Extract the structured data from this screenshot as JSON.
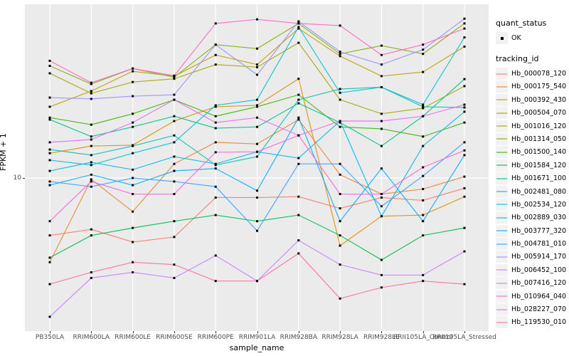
{
  "axes": {
    "x_title": "sample_name",
    "y_title": "FPKM + 1",
    "y_tick": "10"
  },
  "legend": {
    "quant_status_title": "quant_status",
    "quant_status_items": [
      {
        "label": "OK"
      }
    ],
    "tracking_id_title": "tracking_id"
  },
  "colors": {
    "panel_bg": "#EBEBEB",
    "grid": "#FFFFFF",
    "tick_label": "#4D4D4D",
    "point": "#000000",
    "legend_key_bg": "#F2F2F2"
  },
  "chart_data": {
    "type": "line",
    "title": "",
    "xlabel": "sample_name",
    "ylabel": "FPKM + 1",
    "y_scale": "log10",
    "y_tick_values": [
      10
    ],
    "ylim": [
      1.05,
      135
    ],
    "grid": "white major gridlines on gray panel",
    "legend_position": "right",
    "point_marker": "small black square (quant_status = OK)",
    "x_categories": [
      "PB350LA",
      "RRIM600LA",
      "RRIM600LE",
      "RRIM600SE",
      "RRIM600PE",
      "RRIM901LA",
      "RRIM928BA",
      "RRIM928LA",
      "RRIM928LE",
      "RRII105LA_Control",
      "RRII105LA_Stressed"
    ],
    "series": [
      {
        "name": "Hb_000078_120",
        "color": "#F8766D",
        "values": [
          4.3,
          4.7,
          3.9,
          4.2,
          7.5,
          7.5,
          7.6,
          6.4,
          7.5,
          7.2,
          8.6
        ]
      },
      {
        "name": "Hb_000175_540",
        "color": "#EA8331",
        "values": [
          2.9,
          9.8,
          6.1,
          12.3,
          16.9,
          16.5,
          23.6,
          10.5,
          7.9,
          8.5,
          10.2
        ]
      },
      {
        "name": "Hb_000392_430",
        "color": "#D89000",
        "values": [
          14.4,
          16.0,
          16.2,
          23.1,
          28.5,
          29.1,
          43.0,
          3.7,
          5.7,
          5.8,
          7.6
        ]
      },
      {
        "name": "Hb_000504_070",
        "color": "#C09B00",
        "values": [
          28.5,
          35.9,
          48.0,
          44.7,
          61.0,
          53.0,
          90.0,
          60.0,
          44.7,
          47.5,
          69.0
        ]
      },
      {
        "name": "Hb_001016_120",
        "color": "#A3A500",
        "values": [
          46.6,
          34.7,
          41.0,
          43.0,
          53.0,
          51.0,
          73.0,
          31.6,
          25.7,
          27.9,
          38.6
        ]
      },
      {
        "name": "Hb_001314_050",
        "color": "#7CAE00",
        "values": [
          52.0,
          39.8,
          50.0,
          44.0,
          71.0,
          67.0,
          97.0,
          62.0,
          70.0,
          62.0,
          97.0
        ]
      },
      {
        "name": "Hb_001500_140",
        "color": "#39B600",
        "values": [
          24.3,
          21.9,
          25.7,
          31.6,
          24.8,
          28.5,
          34.0,
          21.2,
          20.6,
          18.4,
          22.6
        ]
      },
      {
        "name": "Hb_001584_120",
        "color": "#00BB4E",
        "values": [
          3.1,
          4.3,
          4.8,
          5.3,
          5.8,
          5.3,
          5.8,
          4.3,
          3.0,
          4.3,
          4.8
        ]
      },
      {
        "name": "Hb_001671_100",
        "color": "#00C087",
        "values": [
          23.6,
          18.4,
          21.2,
          24.8,
          20.8,
          21.2,
          30.0,
          22.6,
          16.0,
          24.8,
          42.8
        ]
      },
      {
        "name": "Hb_002481_080",
        "color": "#00C0B2",
        "values": [
          15.2,
          14.0,
          16.0,
          18.7,
          12.1,
          13.7,
          31.6,
          37.0,
          38.0,
          28.5,
          28.2
        ]
      },
      {
        "name": "Hb_002534_120",
        "color": "#00BFD3",
        "values": [
          13.0,
          12.1,
          14.4,
          16.9,
          29.1,
          31.6,
          92.0,
          35.0,
          38.0,
          29.4,
          79.0
        ]
      },
      {
        "name": "Hb_002889_030",
        "color": "#00B8E5",
        "values": [
          11.1,
          12.6,
          11.3,
          13.7,
          12.3,
          14.7,
          13.4,
          23.1,
          5.7,
          16.0,
          26.5
        ]
      },
      {
        "name": "Hb_003777_320",
        "color": "#00ACFC",
        "values": [
          9.0,
          10.5,
          9.0,
          11.1,
          11.5,
          8.3,
          24.3,
          5.3,
          11.5,
          5.3,
          14.0
        ]
      },
      {
        "name": "Hb_004781_010",
        "color": "#35A2FF",
        "values": [
          9.5,
          8.8,
          10.0,
          9.5,
          8.8,
          4.6,
          12.3,
          12.3,
          6.6,
          10.3,
          16.9
        ]
      },
      {
        "name": "Hb_005914_170",
        "color": "#9590FF",
        "values": [
          32.6,
          32.0,
          33.3,
          34.0,
          71.0,
          45.6,
          100.0,
          64.0,
          53.0,
          66.0,
          104.0
        ]
      },
      {
        "name": "Hb_006452_100",
        "color": "#C77CFF",
        "values": [
          1.3,
          2.3,
          2.5,
          2.3,
          3.2,
          2.2,
          4.0,
          2.8,
          2.4,
          2.4,
          3.4
        ]
      },
      {
        "name": "Hb_007416_120",
        "color": "#E76BF3",
        "values": [
          16.9,
          17.6,
          22.6,
          31.6,
          22.6,
          24.3,
          18.7,
          23.1,
          23.1,
          24.8,
          29.4
        ]
      },
      {
        "name": "Hb_010964_040",
        "color": "#FA62DB",
        "values": [
          5.3,
          9.5,
          7.9,
          7.9,
          14.6,
          14.7,
          18.7,
          7.9,
          7.9,
          11.7,
          15.0
        ]
      },
      {
        "name": "Hb_028227_070",
        "color": "#FF61C9",
        "values": [
          56.0,
          40.6,
          50.0,
          45.0,
          97.0,
          103.0,
          97.0,
          94.0,
          61.0,
          71.0,
          90.0
        ]
      },
      {
        "name": "Hb_119530_010",
        "color": "#FF6A98",
        "values": [
          2.1,
          2.5,
          2.9,
          2.8,
          2.2,
          2.2,
          3.3,
          1.7,
          2.0,
          2.2,
          2.1
        ]
      }
    ]
  }
}
